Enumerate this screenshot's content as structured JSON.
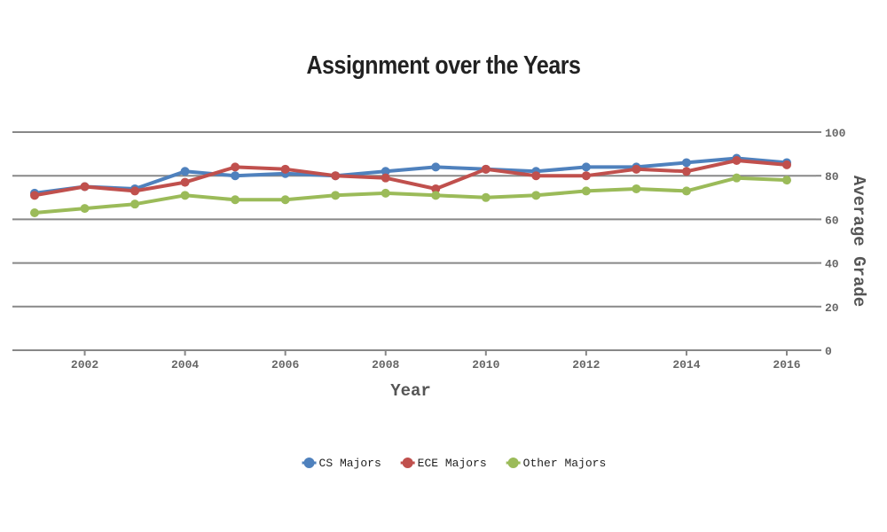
{
  "chart_data": {
    "type": "line",
    "title": "Assignment over the Years",
    "xlabel": "Year",
    "ylabel": "Average Grade",
    "xlim": [
      2001,
      2016
    ],
    "ylim": [
      0,
      100
    ],
    "x_ticks": [
      "2002",
      "2004",
      "2006",
      "2008",
      "2010",
      "2012",
      "2014",
      "2016"
    ],
    "y_ticks": [
      "0",
      "20",
      "40",
      "60",
      "80",
      "100"
    ],
    "y_axis_side": "right",
    "grid": true,
    "legend_position": "bottom",
    "x": [
      2001,
      2002,
      2003,
      2004,
      2005,
      2006,
      2007,
      2008,
      2009,
      2010,
      2011,
      2012,
      2013,
      2014,
      2015,
      2016
    ],
    "series": [
      {
        "name": "CS Majors",
        "color": "#4f81bd",
        "values": [
          72,
          75,
          74,
          82,
          80,
          81,
          80,
          82,
          84,
          83,
          82,
          84,
          84,
          86,
          88,
          86
        ]
      },
      {
        "name": "ECE Majors",
        "color": "#c0504d",
        "values": [
          71,
          75,
          73,
          77,
          84,
          83,
          80,
          79,
          74,
          83,
          80,
          80,
          83,
          82,
          87,
          85
        ]
      },
      {
        "name": "Other Majors",
        "color": "#9bbb59",
        "values": [
          63,
          65,
          67,
          71,
          69,
          69,
          71,
          72,
          71,
          70,
          71,
          73,
          74,
          73,
          79,
          78
        ]
      }
    ]
  }
}
